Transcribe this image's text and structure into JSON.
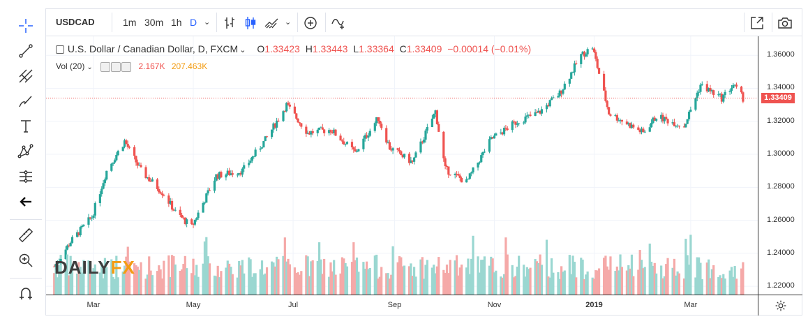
{
  "symbol": "USDCAD",
  "intervals": [
    "1m",
    "30m",
    "1h",
    "D"
  ],
  "active_interval": "D",
  "legend": {
    "name": "U.S. Dollar / Canadian Dollar, D, FXCM",
    "open_label": "O",
    "open": "1.33423",
    "high_label": "H",
    "high": "1.33443",
    "low_label": "L",
    "low": "1.33364",
    "close_label": "C",
    "close": "1.33409",
    "change": "−0.00014 (−0.01%)"
  },
  "volume": {
    "label": "Vol (20)",
    "value1": "2.167K",
    "value2": "207.463K"
  },
  "last_price": "1.33409",
  "logo": {
    "part1": "DAILY",
    "part2": "FX"
  },
  "colors": {
    "up": "#26a69a",
    "down": "#ef5350",
    "vol_up": "#9ad7d1",
    "vol_down": "#f5a9a8",
    "accent": "#2962ff"
  },
  "icons": [
    "crosshair-icon",
    "trend-line-icon",
    "pitchfork-icon",
    "brush-icon",
    "text-icon",
    "pattern-icon",
    "prediction-icon",
    "back-arrow-icon",
    "ruler-icon",
    "zoom-in-icon",
    "magnet-icon",
    "bar-type-icon",
    "candle-type-icon",
    "area-type-icon",
    "add-indicator-icon",
    "compare-icon",
    "fullscreen-icon",
    "camera-icon",
    "settings-icon"
  ],
  "chart_data": {
    "type": "candlestick",
    "title": "U.S. Dollar / Canadian Dollar, D, FXCM",
    "y_ticks": [
      "1.36000",
      "1.34000",
      "1.32000",
      "1.30000",
      "1.28000",
      "1.26000",
      "1.24000",
      "1.22000"
    ],
    "ylim": [
      1.215,
      1.3715
    ],
    "x_ticks": [
      "Mar",
      "May",
      "Jul",
      "Sep",
      "Nov",
      "2019",
      "Mar"
    ],
    "x": [
      "2018-02-05",
      "2018-02-15",
      "2018-02-28",
      "2018-03-09",
      "2018-03-20",
      "2018-03-30",
      "2018-04-13",
      "2018-04-20",
      "2018-04-30",
      "2018-05-15",
      "2018-05-31",
      "2018-06-15",
      "2018-06-27",
      "2018-07-10",
      "2018-07-24",
      "2018-08-08",
      "2018-08-22",
      "2018-08-29",
      "2018-09-12",
      "2018-09-26",
      "2018-10-02",
      "2018-10-15",
      "2018-10-30",
      "2018-11-15",
      "2018-11-28",
      "2018-12-11",
      "2018-12-24",
      "2018-12-31",
      "2019-01-10",
      "2019-01-31",
      "2019-02-08",
      "2019-02-25",
      "2019-03-07",
      "2019-03-20",
      "2019-03-27",
      "2019-04-02"
    ],
    "close": [
      1.232,
      1.247,
      1.262,
      1.29,
      1.308,
      1.29,
      1.276,
      1.265,
      1.256,
      1.287,
      1.29,
      1.31,
      1.33,
      1.313,
      1.315,
      1.301,
      1.322,
      1.304,
      1.295,
      1.326,
      1.291,
      1.283,
      1.309,
      1.32,
      1.325,
      1.337,
      1.36,
      1.365,
      1.325,
      1.313,
      1.323,
      1.317,
      1.342,
      1.334,
      1.342,
      1.334
    ],
    "volume_label": "Vol (20)"
  }
}
